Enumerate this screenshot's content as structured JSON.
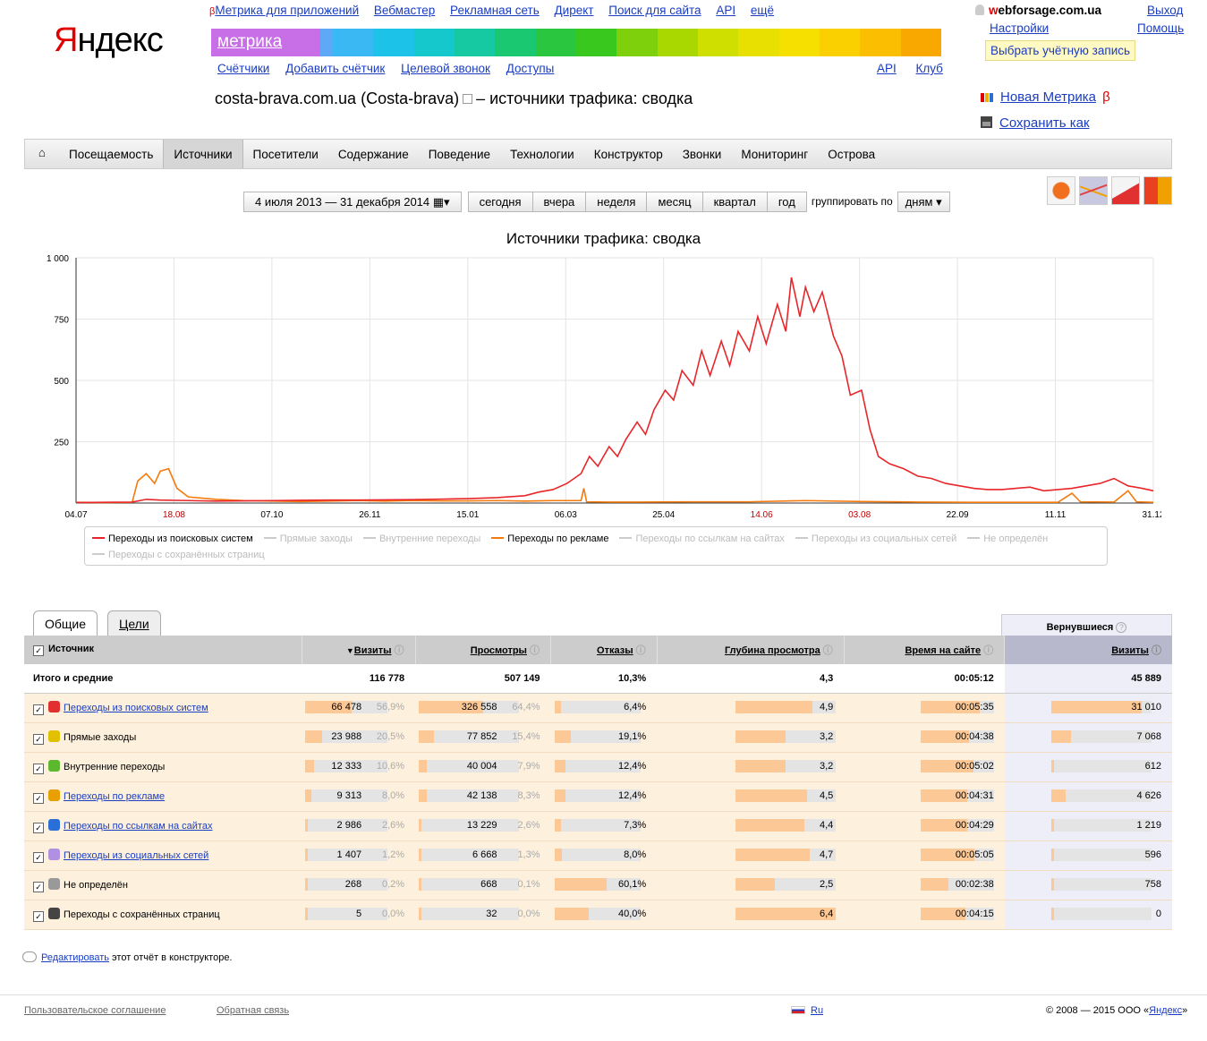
{
  "logo": {
    "y": "Я",
    "rest": "ндекс"
  },
  "services": {
    "beta": "β",
    "items": [
      "Метрика для приложений",
      "Вебмастер",
      "Рекламная сеть",
      "Директ",
      "Поиск для сайта",
      "API",
      "ещё"
    ]
  },
  "product": "метрика",
  "rainbow": [
    "#c86fe8",
    "#a389f0",
    "#5fa8f7",
    "#3ab8f4",
    "#1cc2e8",
    "#14c8cc",
    "#17c9a2",
    "#19c871",
    "#2ac640",
    "#38c81e",
    "#7ed00c",
    "#a8d800",
    "#cfe000",
    "#e8e000",
    "#f6e000",
    "#fbd000",
    "#fbbe00",
    "#f9a800"
  ],
  "sub_nav": [
    "Счётчики",
    "Добавить счётчик",
    "Целевой звонок",
    "Доступы"
  ],
  "sub_nav_right": [
    "API",
    "Клуб"
  ],
  "user": {
    "name_first": "w",
    "name_rest": "ebforsage.com.ua",
    "exit": "Выход",
    "settings": "Настройки",
    "help": "Помощь",
    "choose": "Выбрать учётную запись"
  },
  "report": {
    "title_a": "costa-brava.com.ua (Costa-brava)",
    "title_b": "– источники трафика: сводка"
  },
  "right_links": {
    "new_metrika": "Новая Метрика",
    "beta": "β",
    "save_as": "Сохранить как"
  },
  "nav": [
    "Посещаемость",
    "Источники",
    "Посетители",
    "Содержание",
    "Поведение",
    "Технологии",
    "Конструктор",
    "Звонки",
    "Мониторинг",
    "Острова"
  ],
  "date": {
    "range": "4 июля 2013 — 31 декабря 2014 ▦▾",
    "periods": [
      "сегодня",
      "вчера",
      "неделя",
      "месяц",
      "квартал",
      "год"
    ],
    "group_label": "группировать по",
    "group_value": "дням ▾"
  },
  "chart_data": {
    "type": "line",
    "title": "Источники трафика: сводка",
    "ylim": [
      0,
      1000
    ],
    "y_ticks": [
      "1 000",
      "750",
      "500",
      "250"
    ],
    "x_ticks": [
      "04.07",
      "18.08",
      "07.10",
      "26.11",
      "15.01",
      "06.03",
      "25.04",
      "14.06",
      "03.08",
      "22.09",
      "11.11",
      "31.12"
    ],
    "x_ticks_red": [
      1,
      7,
      8
    ],
    "series": [
      {
        "name": "Переходы из поисковых систем",
        "color": "#e8262a",
        "points": [
          [
            0,
            2
          ],
          [
            10,
            3
          ],
          [
            20,
            4
          ],
          [
            25,
            15
          ],
          [
            30,
            12
          ],
          [
            40,
            10
          ],
          [
            50,
            8
          ],
          [
            60,
            9
          ],
          [
            70,
            10
          ],
          [
            80,
            11
          ],
          [
            90,
            12
          ],
          [
            100,
            12
          ],
          [
            110,
            13
          ],
          [
            120,
            14
          ],
          [
            130,
            16
          ],
          [
            140,
            18
          ],
          [
            150,
            22
          ],
          [
            160,
            30
          ],
          [
            165,
            45
          ],
          [
            170,
            55
          ],
          [
            175,
            80
          ],
          [
            180,
            120
          ],
          [
            183,
            190
          ],
          [
            186,
            150
          ],
          [
            190,
            230
          ],
          [
            193,
            190
          ],
          [
            196,
            260
          ],
          [
            200,
            330
          ],
          [
            203,
            280
          ],
          [
            206,
            380
          ],
          [
            210,
            460
          ],
          [
            213,
            420
          ],
          [
            216,
            540
          ],
          [
            220,
            480
          ],
          [
            223,
            620
          ],
          [
            226,
            520
          ],
          [
            230,
            660
          ],
          [
            233,
            560
          ],
          [
            236,
            700
          ],
          [
            240,
            620
          ],
          [
            243,
            760
          ],
          [
            246,
            650
          ],
          [
            250,
            810
          ],
          [
            253,
            700
          ],
          [
            255,
            920
          ],
          [
            258,
            760
          ],
          [
            260,
            880
          ],
          [
            263,
            780
          ],
          [
            266,
            860
          ],
          [
            270,
            680
          ],
          [
            273,
            600
          ],
          [
            276,
            440
          ],
          [
            280,
            460
          ],
          [
            283,
            300
          ],
          [
            286,
            190
          ],
          [
            290,
            160
          ],
          [
            295,
            140
          ],
          [
            300,
            110
          ],
          [
            305,
            100
          ],
          [
            310,
            80
          ],
          [
            315,
            70
          ],
          [
            320,
            60
          ],
          [
            325,
            55
          ],
          [
            330,
            55
          ],
          [
            335,
            60
          ],
          [
            340,
            65
          ],
          [
            345,
            50
          ],
          [
            350,
            55
          ],
          [
            355,
            60
          ],
          [
            360,
            70
          ],
          [
            365,
            80
          ],
          [
            370,
            100
          ],
          [
            375,
            70
          ],
          [
            380,
            60
          ],
          [
            384,
            50
          ]
        ]
      },
      {
        "name": "Переходы по рекламе",
        "color": "#f47a0c",
        "points": [
          [
            0,
            3
          ],
          [
            10,
            2
          ],
          [
            20,
            3
          ],
          [
            22,
            90
          ],
          [
            25,
            120
          ],
          [
            28,
            80
          ],
          [
            30,
            130
          ],
          [
            33,
            140
          ],
          [
            36,
            60
          ],
          [
            40,
            25
          ],
          [
            50,
            15
          ],
          [
            60,
            10
          ],
          [
            70,
            8
          ],
          [
            80,
            6
          ],
          [
            90,
            8
          ],
          [
            100,
            10
          ],
          [
            110,
            8
          ],
          [
            120,
            10
          ],
          [
            130,
            9
          ],
          [
            140,
            9
          ],
          [
            150,
            10
          ],
          [
            160,
            8
          ],
          [
            170,
            10
          ],
          [
            180,
            10
          ],
          [
            181,
            60
          ],
          [
            182,
            5
          ],
          [
            190,
            4
          ],
          [
            200,
            4
          ],
          [
            220,
            5
          ],
          [
            240,
            5
          ],
          [
            260,
            10
          ],
          [
            280,
            6
          ],
          [
            300,
            4
          ],
          [
            320,
            3
          ],
          [
            340,
            3
          ],
          [
            350,
            3
          ],
          [
            355,
            40
          ],
          [
            358,
            5
          ],
          [
            370,
            4
          ],
          [
            375,
            50
          ],
          [
            378,
            5
          ],
          [
            384,
            3
          ]
        ]
      }
    ]
  },
  "legend": [
    {
      "name": "Переходы из поисковых систем",
      "color": "#e8262a",
      "on": true
    },
    {
      "name": "Прямые заходы",
      "color": "#ccc",
      "on": false
    },
    {
      "name": "Внутренние переходы",
      "color": "#ccc",
      "on": false
    },
    {
      "name": "Переходы по рекламе",
      "color": "#f47a0c",
      "on": true
    },
    {
      "name": "Переходы по ссылкам на сайтах",
      "color": "#ccc",
      "on": false
    },
    {
      "name": "Переходы из социальных сетей",
      "color": "#ccc",
      "on": false
    },
    {
      "name": "Не определён",
      "color": "#ccc",
      "on": false
    },
    {
      "name": "Переходы с сохранённых страниц",
      "color": "#ccc",
      "on": false
    }
  ],
  "tabs": [
    "Общие",
    "Цели"
  ],
  "returning": "Вернувшиеся",
  "table": {
    "headers": {
      "src": "Источник",
      "visits": "Визиты",
      "views": "Просмотры",
      "bounce": "Отказы",
      "depth": "Глубина просмотра",
      "time": "Время на сайте",
      "ret_visits": "Визиты"
    },
    "total": {
      "label": "Итого и средние",
      "visits": "116 778",
      "views": "507 149",
      "bounce": "10,3%",
      "depth": "4,3",
      "time": "00:05:12",
      "ret": "45 889"
    },
    "rows": [
      {
        "src": "Переходы из поисковых систем",
        "icon": "search-icon",
        "ic": "#e03030",
        "link": true,
        "visits": "66 478",
        "vp": "56,9%",
        "vf": 0.57,
        "views": "326 558",
        "wp": "64,4%",
        "wf": 0.64,
        "bounce": "6,4%",
        "bf": 0.07,
        "depth": "4,9",
        "df": 0.77,
        "time": "00:05:35",
        "tf": 0.8,
        "ret": "31 010",
        "rf": 0.9
      },
      {
        "src": "Прямые заходы",
        "icon": "direct-icon",
        "ic": "#e0c000",
        "link": false,
        "visits": "23 988",
        "vp": "20,5%",
        "vf": 0.21,
        "views": "77 852",
        "wp": "15,4%",
        "wf": 0.15,
        "bounce": "19,1%",
        "bf": 0.19,
        "depth": "3,2",
        "df": 0.5,
        "time": "00:04:38",
        "tf": 0.66,
        "ret": "7 068",
        "rf": 0.2
      },
      {
        "src": "Внутренние переходы",
        "icon": "internal-icon",
        "ic": "#5cb82e",
        "link": false,
        "visits": "12 333",
        "vp": "10,6%",
        "vf": 0.11,
        "views": "40 004",
        "wp": "7,9%",
        "wf": 0.08,
        "bounce": "12,4%",
        "bf": 0.12,
        "depth": "3,2",
        "df": 0.5,
        "time": "00:05:02",
        "tf": 0.72,
        "ret": "612",
        "rf": 0.02
      },
      {
        "src": "Переходы по рекламе",
        "icon": "ads-icon",
        "ic": "#e8a000",
        "link": true,
        "visits": "9 313",
        "vp": "8,0%",
        "vf": 0.08,
        "views": "42 138",
        "wp": "8,3%",
        "wf": 0.08,
        "bounce": "12,4%",
        "bf": 0.12,
        "depth": "4,5",
        "df": 0.71,
        "time": "00:04:31",
        "tf": 0.64,
        "ret": "4 626",
        "rf": 0.14
      },
      {
        "src": "Переходы по ссылкам на сайтах",
        "icon": "link-icon",
        "ic": "#2a6fd8",
        "link": true,
        "visits": "2 986",
        "vp": "2,6%",
        "vf": 0.03,
        "views": "13 229",
        "wp": "2,6%",
        "wf": 0.03,
        "bounce": "7,3%",
        "bf": 0.07,
        "depth": "4,4",
        "df": 0.69,
        "time": "00:04:29",
        "tf": 0.64,
        "ret": "1 219",
        "rf": 0.03
      },
      {
        "src": "Переходы из социальных сетей",
        "icon": "social-icon",
        "ic": "#b090e0",
        "link": true,
        "visits": "1 407",
        "vp": "1,2%",
        "vf": 0.01,
        "views": "6 668",
        "wp": "1,3%",
        "wf": 0.01,
        "bounce": "8,0%",
        "bf": 0.08,
        "depth": "4,7",
        "df": 0.74,
        "time": "00:05:05",
        "tf": 0.73,
        "ret": "596",
        "rf": 0.02
      },
      {
        "src": "Не определён",
        "icon": "unknown-icon",
        "ic": "#999",
        "link": false,
        "visits": "268",
        "vp": "0,2%",
        "vf": 0.003,
        "views": "668",
        "wp": "0,1%",
        "wf": 0.001,
        "bounce": "60,1%",
        "bf": 0.6,
        "depth": "2,5",
        "df": 0.39,
        "time": "00:02:38",
        "tf": 0.38,
        "ret": "758",
        "rf": 0.02
      },
      {
        "src": "Переходы с сохранённых страниц",
        "icon": "saved-icon",
        "ic": "#444",
        "link": false,
        "visits": "5",
        "vp": "0,0%",
        "vf": 0.0,
        "views": "32",
        "wp": "0,0%",
        "wf": 0.0,
        "bounce": "40,0%",
        "bf": 0.4,
        "depth": "6,4",
        "df": 1.0,
        "time": "00:04:15",
        "tf": 0.61,
        "ret": "0",
        "rf": 0.0
      }
    ]
  },
  "edit": {
    "link": "Редактировать",
    "rest": " этот отчёт в конструкторе."
  },
  "footer": {
    "agreement": "Пользовательское соглашение",
    "feedback": "Обратная связь",
    "lang": "Ru",
    "copyright": "© 2008 — 2015 ООО «",
    "yandex": "Яндекс",
    "end": "»"
  }
}
